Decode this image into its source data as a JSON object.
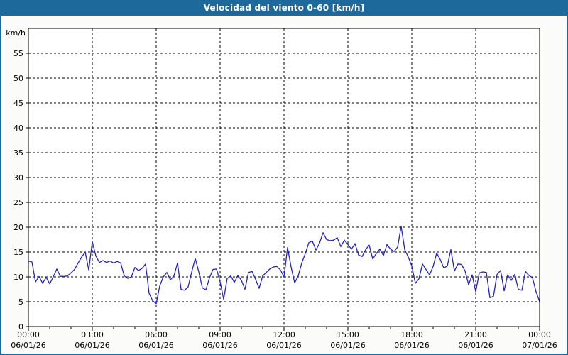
{
  "title_bar": {
    "title": "Velocidad del viento 0-60 [km/h]"
  },
  "colors": {
    "title_bg": "#1e699c",
    "frame": "#1e699c",
    "page_bg": "#fbfcf9",
    "plot_bg": "#ffffff",
    "grid": "#000000",
    "axis_text": "#000000",
    "line": "#2222c8"
  },
  "axes": {
    "y_unit_label": "km/h",
    "y_ticks": [
      0,
      5,
      10,
      15,
      20,
      25,
      30,
      35,
      40,
      45,
      50,
      55
    ],
    "x_ticks": [
      {
        "hour": 0,
        "time": "00:00",
        "date": "06/01/26"
      },
      {
        "hour": 3,
        "time": "03:00",
        "date": "06/01/26"
      },
      {
        "hour": 6,
        "time": "06:00",
        "date": "06/01/26"
      },
      {
        "hour": 9,
        "time": "09:00",
        "date": "06/01/26"
      },
      {
        "hour": 12,
        "time": "12:00",
        "date": "06/01/26"
      },
      {
        "hour": 15,
        "time": "15:00",
        "date": "06/01/26"
      },
      {
        "hour": 18,
        "time": "18:00",
        "date": "06/01/26"
      },
      {
        "hour": 21,
        "time": "21:00",
        "date": "06/01/26"
      },
      {
        "hour": 24,
        "time": "00:00",
        "date": "07/01/26"
      }
    ],
    "x_minor_tick_hours": 1,
    "x_major_tick_hours": 3
  },
  "chart_data": {
    "type": "line",
    "title": "Velocidad del viento 0-60 [km/h]",
    "ylabel": "km/h",
    "ylim": [
      0,
      60
    ],
    "x_range": [
      "06/01/26 00:00",
      "07/01/26 00:00"
    ],
    "sample_interval_minutes": 10,
    "grid": true,
    "legend_position": "none",
    "values": [
      13.2,
      13.0,
      9.0,
      10.1,
      8.7,
      9.9,
      8.6,
      10.0,
      11.6,
      10.1,
      10.1,
      10.2,
      10.8,
      11.5,
      12.8,
      14.0,
      15.0,
      11.4,
      17.1,
      14.2,
      12.9,
      13.3,
      12.9,
      13.2,
      12.8,
      13.1,
      12.8,
      10.2,
      9.7,
      10.0,
      11.9,
      11.3,
      11.7,
      12.6,
      6.7,
      5.2,
      4.6,
      8.2,
      10.0,
      10.9,
      9.4,
      10.2,
      12.8,
      7.5,
      7.3,
      8.0,
      11.0,
      13.7,
      11.0,
      7.8,
      7.4,
      9.8,
      11.5,
      11.6,
      9.0,
      5.5,
      9.7,
      10.2,
      8.9,
      10.3,
      9.3,
      7.5,
      10.9,
      11.1,
      9.5,
      7.7,
      10.2,
      10.9,
      11.6,
      12.0,
      12.1,
      11.4,
      10.0,
      15.9,
      12.0,
      8.8,
      10.2,
      12.8,
      14.7,
      16.9,
      17.2,
      15.4,
      16.8,
      18.9,
      17.5,
      17.3,
      17.4,
      17.9,
      16.1,
      17.4,
      16.5,
      15.6,
      16.7,
      14.4,
      14.1,
      15.5,
      16.4,
      13.6,
      14.7,
      15.6,
      14.3,
      16.5,
      15.6,
      15.1,
      16.0,
      20.2,
      15.5,
      14.0,
      12.2,
      8.7,
      9.6,
      12.6,
      11.5,
      10.4,
      12.1,
      14.8,
      13.5,
      11.8,
      12.2,
      15.5,
      11.2,
      12.6,
      12.5,
      11.2,
      8.4,
      10.4,
      7.0,
      10.8,
      11.0,
      10.9,
      5.8,
      6.1,
      10.5,
      11.3,
      7.2,
      10.4,
      9.3,
      10.5,
      7.5,
      7.3,
      11.1,
      10.3,
      9.8,
      7.0,
      5.0
    ]
  }
}
